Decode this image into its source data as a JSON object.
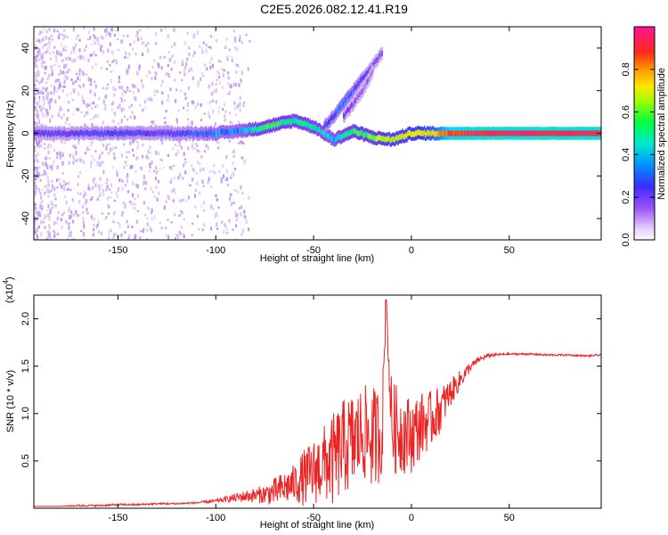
{
  "figure_title": "C2E5.2026.082.12.41.R19",
  "colors": {
    "line": "#ee2222",
    "spectrum_colormap": [
      "#f8f0ff",
      "#c8a8f0",
      "#8a3cf0",
      "#3c3cff",
      "#00d8ff",
      "#00ff66",
      "#c8ff00",
      "#ffe600",
      "#ff9a00",
      "#ff2a2a",
      "#ff1493"
    ]
  },
  "chart_data": [
    {
      "type": "heatmap",
      "name": "spectrogram",
      "title": "",
      "xlabel": "Height of straight line (km)",
      "ylabel": "Frequency (Hz)",
      "xlim": [
        -193,
        97
      ],
      "ylim": [
        -50,
        50
      ],
      "x_ticks": [
        -150,
        -100,
        -50,
        0,
        50
      ],
      "x_tick_labels": [
        "-150",
        "-100",
        "-50",
        "0",
        "50"
      ],
      "y_ticks": [
        -40,
        -20,
        0,
        20,
        40
      ],
      "y_tick_labels": [
        "-40",
        "-20",
        "0",
        "20",
        "40"
      ],
      "colorbar": {
        "label": "Normalized spectral amplitude",
        "range": [
          0,
          1
        ],
        "ticks": [
          0.0,
          0.2,
          0.4,
          0.6,
          0.8
        ],
        "tick_labels": [
          "0.0",
          "0.2",
          "0.4",
          "0.6",
          "0.8"
        ]
      },
      "ridges": [
        {
          "name": "main-tone",
          "x": [
            -193,
            -170,
            -150,
            -130,
            -110,
            -100,
            -90,
            -80,
            -70,
            -60,
            -50,
            -40,
            -30,
            -20,
            -10,
            0,
            10,
            20,
            40,
            60,
            80,
            97
          ],
          "freq": [
            0,
            0,
            0,
            0,
            0,
            0,
            1,
            2,
            4,
            6,
            3,
            -3,
            1,
            -2,
            -3,
            0,
            0,
            0,
            0,
            0,
            0,
            0
          ],
          "amp": [
            0.25,
            0.25,
            0.28,
            0.25,
            0.3,
            0.35,
            0.35,
            0.45,
            0.5,
            0.45,
            0.45,
            0.4,
            0.5,
            0.55,
            0.6,
            0.65,
            0.7,
            0.9,
            0.95,
            0.95,
            0.95,
            0.95
          ]
        },
        {
          "name": "upper-branch",
          "x": [
            -45,
            -40,
            -35,
            -30,
            -25,
            -20,
            -15
          ],
          "freq": [
            3,
            8,
            14,
            20,
            26,
            32,
            38
          ],
          "amp": [
            0.3,
            0.3,
            0.35,
            0.3,
            0.25,
            0.22,
            0.2
          ]
        },
        {
          "name": "secondary-branch",
          "x": [
            -35,
            -30,
            -25,
            -20
          ],
          "freq": [
            8,
            14,
            20,
            29
          ],
          "amp": [
            0.22,
            0.2,
            0.18,
            0.15
          ]
        }
      ]
    },
    {
      "type": "line",
      "name": "snr",
      "title": "",
      "xlabel": "Height of straight line (km)",
      "ylabel": "SNR (10 * v/v)",
      "y_scale_label": "(x10",
      "y_scale_exponent": "4",
      "xlim": [
        -193,
        97
      ],
      "ylim": [
        0,
        2.25
      ],
      "x_ticks": [
        -150,
        -100,
        -50,
        0,
        50
      ],
      "x_tick_labels": [
        "-150",
        "-100",
        "-50",
        "0",
        "50"
      ],
      "y_ticks": [
        0.5,
        1.0,
        1.5,
        2.0
      ],
      "y_tick_labels": [
        "0.5",
        "1.0",
        "1.5",
        "2.0"
      ],
      "series": [
        {
          "name": "SNR",
          "x": [
            -193,
            -180,
            -170,
            -160,
            -150,
            -140,
            -130,
            -120,
            -110,
            -100,
            -95,
            -90,
            -85,
            -80,
            -75,
            -70,
            -65,
            -60,
            -55,
            -50,
            -45,
            -40,
            -35,
            -30,
            -25,
            -20,
            -15,
            -13,
            -10,
            -5,
            0,
            5,
            10,
            15,
            20,
            25,
            30,
            35,
            40,
            50,
            60,
            70,
            80,
            90,
            97
          ],
          "y": [
            0.02,
            0.02,
            0.03,
            0.03,
            0.04,
            0.04,
            0.05,
            0.05,
            0.06,
            0.08,
            0.1,
            0.12,
            0.14,
            0.15,
            0.17,
            0.2,
            0.25,
            0.3,
            0.38,
            0.45,
            0.55,
            0.6,
            0.75,
            0.8,
            0.9,
            0.85,
            0.9,
            2.2,
            0.95,
            0.9,
            0.85,
            0.95,
            1.0,
            1.1,
            1.25,
            1.38,
            1.5,
            1.58,
            1.62,
            1.63,
            1.63,
            1.62,
            1.62,
            1.61,
            1.62
          ],
          "noise": [
            0.0,
            0.0,
            0.01,
            0.01,
            0.01,
            0.01,
            0.01,
            0.01,
            0.01,
            0.02,
            0.03,
            0.05,
            0.06,
            0.08,
            0.1,
            0.15,
            0.18,
            0.2,
            0.3,
            0.35,
            0.4,
            0.5,
            0.5,
            0.55,
            0.5,
            0.55,
            0.5,
            0.0,
            0.5,
            0.45,
            0.4,
            0.35,
            0.3,
            0.25,
            0.15,
            0.1,
            0.05,
            0.03,
            0.02,
            0.01,
            0.01,
            0.01,
            0.01,
            0.01,
            0.01
          ]
        }
      ]
    }
  ]
}
